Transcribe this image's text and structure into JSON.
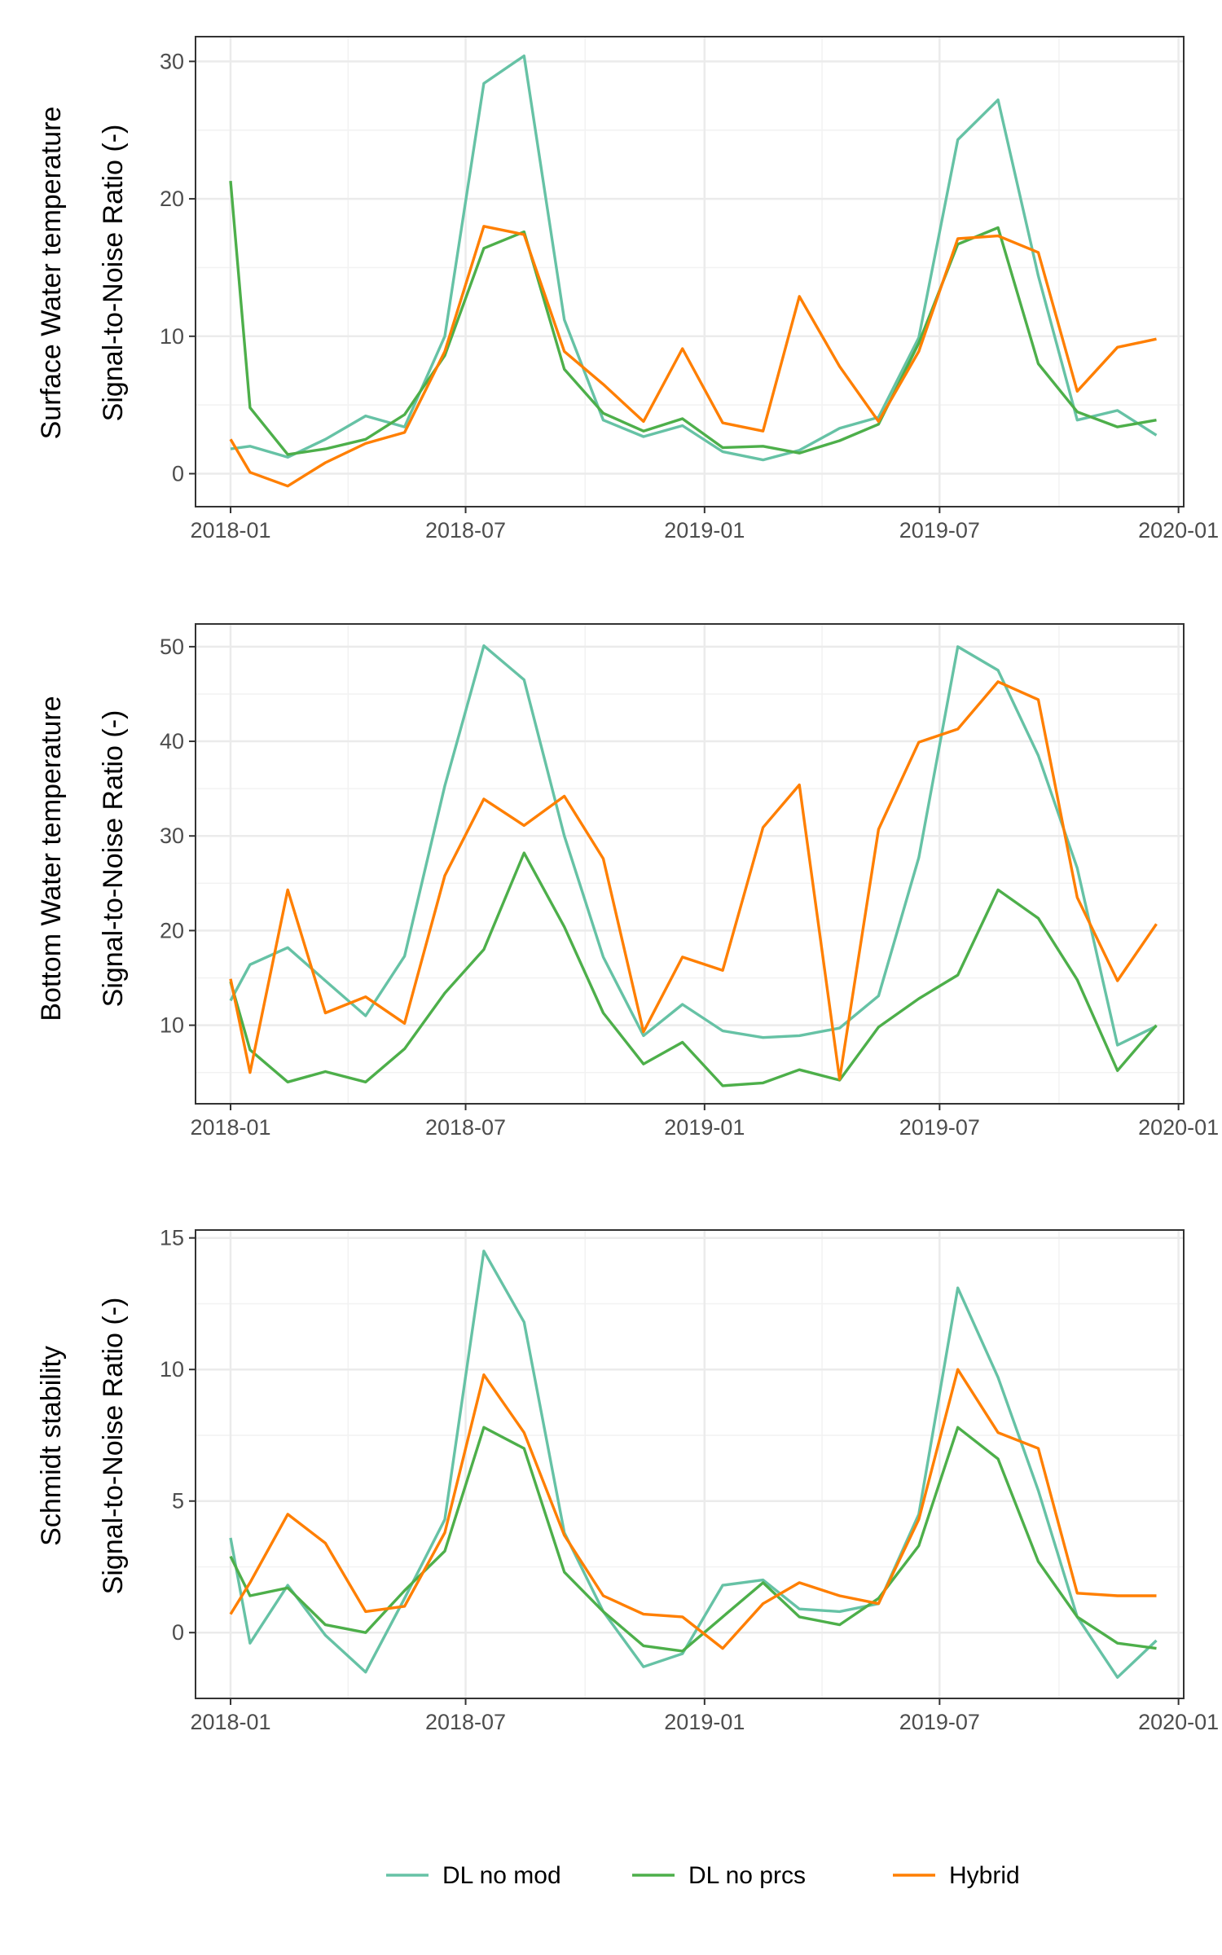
{
  "chart_data": [
    {
      "type": "line",
      "panel_label": "Surface Water temperature",
      "ylabel": "Signal-to-Noise Ratio (-)",
      "x_ticks": [
        "2018-01",
        "2018-07",
        "2019-01",
        "2019-07",
        "2020-01"
      ],
      "y_ticks": [
        0,
        10,
        20,
        30
      ],
      "xlim": [
        "2017-12-05",
        "2020-01-05"
      ],
      "ylim": [
        -2.4,
        31.8
      ],
      "grid": true,
      "x": [
        "2018-01-01",
        "2018-01-16",
        "2018-02-14",
        "2018-03-15",
        "2018-04-15",
        "2018-05-15",
        "2018-06-15",
        "2018-07-15",
        "2018-08-15",
        "2018-09-15",
        "2018-10-15",
        "2018-11-15",
        "2018-12-15",
        "2019-01-15",
        "2019-02-15",
        "2019-03-15",
        "2019-04-15",
        "2019-05-15",
        "2019-06-15",
        "2019-07-15",
        "2019-08-15",
        "2019-09-15",
        "2019-10-15",
        "2019-11-15",
        "2019-12-15"
      ],
      "series": [
        {
          "name": "DL no mod",
          "color": "#66C2A5",
          "values": [
            1.8,
            2.0,
            1.2,
            2.5,
            4.2,
            3.4,
            10.0,
            28.4,
            30.4,
            11.2,
            3.9,
            2.7,
            3.5,
            1.6,
            1.0,
            1.7,
            3.3,
            4.1,
            9.9,
            24.3,
            27.2,
            14.4,
            3.9,
            4.6,
            2.8
          ]
        },
        {
          "name": "DL no prcs",
          "color": "#4DAF4A",
          "values": [
            21.3,
            4.8,
            1.4,
            1.8,
            2.5,
            4.3,
            8.6,
            16.4,
            17.6,
            7.6,
            4.4,
            3.1,
            4.0,
            1.9,
            2.0,
            1.5,
            2.4,
            3.6,
            9.5,
            16.7,
            17.9,
            8.0,
            4.5,
            3.4,
            3.9
          ]
        },
        {
          "name": "Hybrid",
          "color": "#FF7F00",
          "values": [
            2.5,
            0.1,
            -0.9,
            0.8,
            2.2,
            3.0,
            8.9,
            18.0,
            17.4,
            8.9,
            6.5,
            3.8,
            9.1,
            3.7,
            3.1,
            12.9,
            7.8,
            3.8,
            8.9,
            17.1,
            17.3,
            16.1,
            6.0,
            9.2,
            9.8
          ]
        }
      ]
    },
    {
      "type": "line",
      "panel_label": "Bottom Water temperature",
      "ylabel": "Signal-to-Noise Ratio (-)",
      "x_ticks": [
        "2018-01",
        "2018-07",
        "2019-01",
        "2019-07",
        "2020-01"
      ],
      "y_ticks": [
        10,
        20,
        30,
        40,
        50
      ],
      "xlim": [
        "2017-12-05",
        "2020-01-05"
      ],
      "ylim": [
        1.7,
        52.4
      ],
      "grid": true,
      "x": [
        "2018-01-01",
        "2018-01-16",
        "2018-02-14",
        "2018-03-15",
        "2018-04-15",
        "2018-05-15",
        "2018-06-15",
        "2018-07-15",
        "2018-08-15",
        "2018-09-15",
        "2018-10-15",
        "2018-11-15",
        "2018-12-15",
        "2019-01-15",
        "2019-02-15",
        "2019-03-15",
        "2019-04-15",
        "2019-05-15",
        "2019-06-15",
        "2019-07-15",
        "2019-08-15",
        "2019-09-15",
        "2019-10-15",
        "2019-11-15",
        "2019-12-15"
      ],
      "series": [
        {
          "name": "DL no mod",
          "color": "#66C2A5",
          "values": [
            12.6,
            16.4,
            18.2,
            14.7,
            11.0,
            17.3,
            35.3,
            50.1,
            46.5,
            30.0,
            17.2,
            8.9,
            12.2,
            9.4,
            8.7,
            8.9,
            9.7,
            13.1,
            27.7,
            50.0,
            47.5,
            38.5,
            26.6,
            7.9,
            9.9
          ]
        },
        {
          "name": "DL no prcs",
          "color": "#4DAF4A",
          "values": [
            14.6,
            7.4,
            4.0,
            5.1,
            4.0,
            7.5,
            13.4,
            18.0,
            28.2,
            20.4,
            11.3,
            5.9,
            8.2,
            3.6,
            3.9,
            5.3,
            4.2,
            9.8,
            12.8,
            15.3,
            24.3,
            21.3,
            14.8,
            5.2,
            10.0
          ]
        },
        {
          "name": "Hybrid",
          "color": "#FF7F00",
          "values": [
            14.9,
            5.0,
            24.3,
            11.3,
            13.0,
            10.2,
            25.8,
            33.9,
            31.1,
            34.2,
            27.6,
            9.3,
            17.2,
            15.8,
            30.9,
            35.4,
            4.3,
            30.7,
            39.9,
            41.3,
            46.3,
            44.4,
            23.5,
            14.7,
            20.7
          ]
        }
      ]
    },
    {
      "type": "line",
      "panel_label": "Schmidt stability",
      "ylabel": "Signal-to-Noise Ratio (-)",
      "x_ticks": [
        "2018-01",
        "2018-07",
        "2019-01",
        "2019-07",
        "2020-01"
      ],
      "y_ticks": [
        0,
        5,
        10,
        15
      ],
      "xlim": [
        "2017-12-05",
        "2020-01-05"
      ],
      "ylim": [
        -2.5,
        15.3
      ],
      "grid": true,
      "x": [
        "2018-01-01",
        "2018-01-16",
        "2018-02-14",
        "2018-03-15",
        "2018-04-15",
        "2018-05-15",
        "2018-06-15",
        "2018-07-15",
        "2018-08-15",
        "2018-09-15",
        "2018-10-15",
        "2018-11-15",
        "2018-12-15",
        "2019-01-15",
        "2019-02-15",
        "2019-03-15",
        "2019-04-15",
        "2019-05-15",
        "2019-06-15",
        "2019-07-15",
        "2019-08-15",
        "2019-09-15",
        "2019-10-15",
        "2019-11-15",
        "2019-12-15"
      ],
      "series": [
        {
          "name": "DL no mod",
          "color": "#66C2A5",
          "values": [
            3.6,
            -0.4,
            1.8,
            -0.1,
            -1.5,
            1.3,
            4.3,
            14.5,
            11.8,
            3.8,
            0.8,
            -1.3,
            -0.8,
            1.8,
            2.0,
            0.9,
            0.8,
            1.1,
            4.5,
            13.1,
            9.7,
            5.4,
            0.6,
            -1.7,
            -0.3
          ]
        },
        {
          "name": "DL no prcs",
          "color": "#4DAF4A",
          "values": [
            2.9,
            1.4,
            1.7,
            0.3,
            0.0,
            1.6,
            3.1,
            7.8,
            7.0,
            2.3,
            0.8,
            -0.5,
            -0.7,
            0.6,
            1.9,
            0.6,
            0.3,
            1.3,
            3.3,
            7.8,
            6.6,
            2.7,
            0.6,
            -0.4,
            -0.6
          ]
        },
        {
          "name": "Hybrid",
          "color": "#FF7F00",
          "values": [
            0.7,
            1.9,
            4.5,
            3.4,
            0.8,
            1.0,
            3.8,
            9.8,
            7.6,
            3.7,
            1.4,
            0.7,
            0.6,
            -0.6,
            1.1,
            1.9,
            1.4,
            1.1,
            4.3,
            10.0,
            7.6,
            7.0,
            1.5,
            1.4,
            1.4
          ]
        }
      ]
    }
  ],
  "legend": {
    "placement": "bottom",
    "entries": [
      {
        "label": "DL no mod",
        "color": "#66C2A5"
      },
      {
        "label": "DL no prcs",
        "color": "#4DAF4A"
      },
      {
        "label": "Hybrid",
        "color": "#FF7F00"
      }
    ]
  }
}
